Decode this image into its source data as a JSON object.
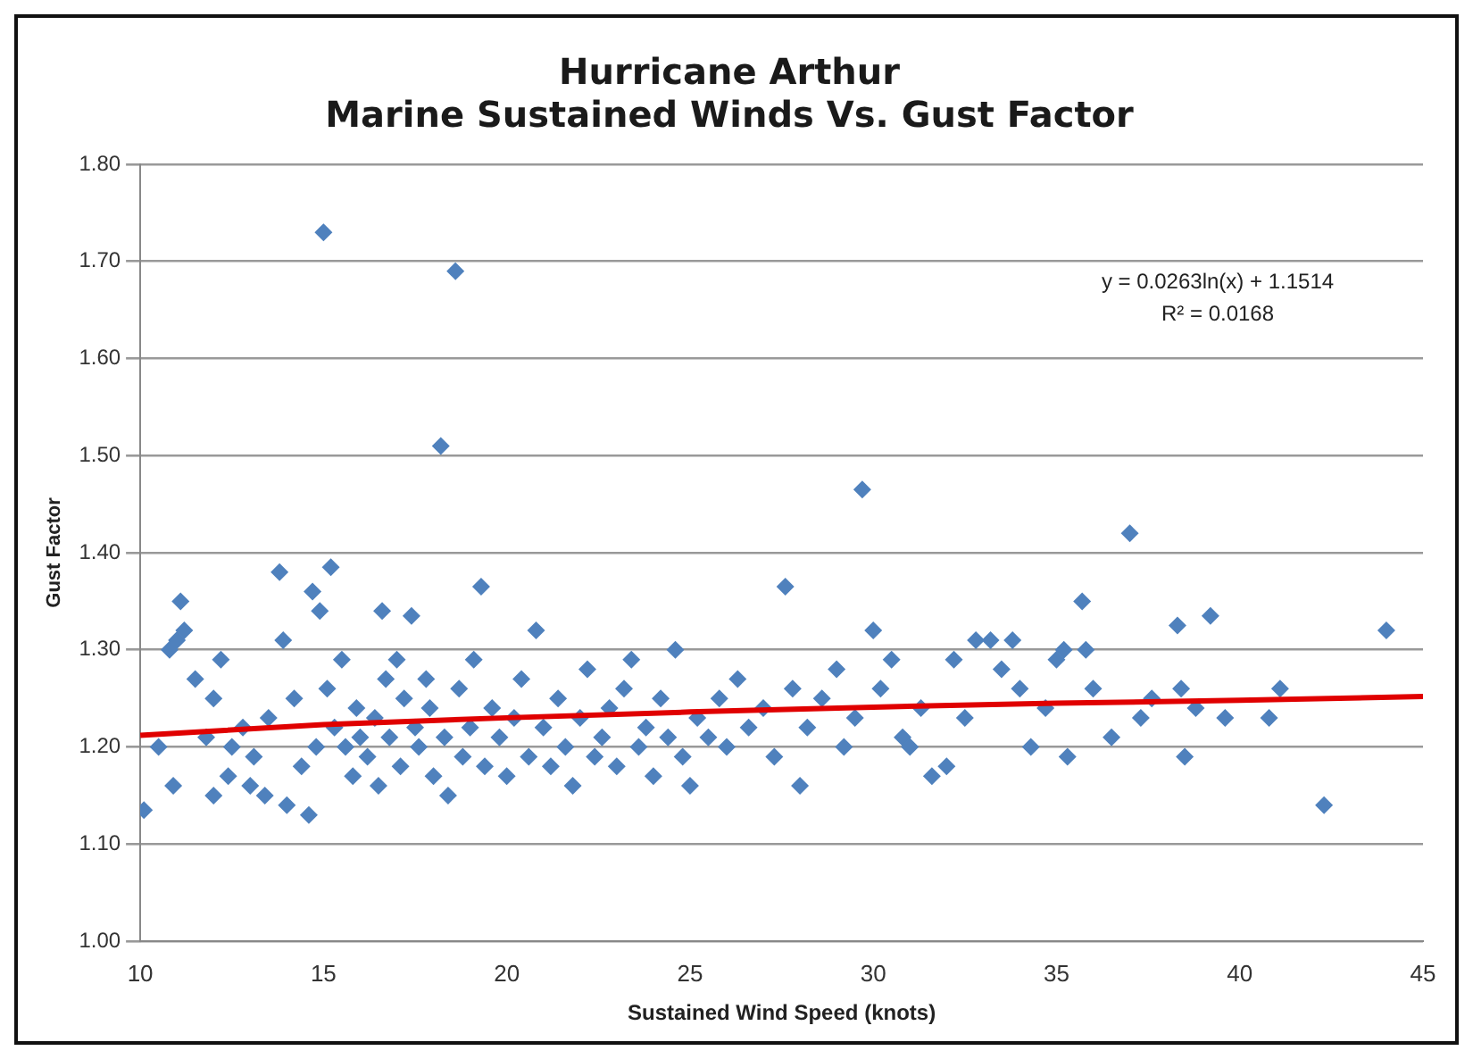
{
  "chart_data": {
    "type": "scatter",
    "title": "Hurricane Arthur\nMarine Sustained Winds Vs. Gust Factor",
    "xlabel": "Sustained Wind Speed (knots)",
    "ylabel": "Gust Factor",
    "annotations": [
      "y = 0.0263ln(x) + 1.1514",
      "R² = 0.0168"
    ],
    "xlim": [
      10,
      45
    ],
    "xticks": [
      10,
      15,
      20,
      25,
      30,
      35,
      40,
      45
    ],
    "ylim": [
      1.0,
      1.8
    ],
    "yticks": [
      {
        "value": 1.0,
        "label": "1.00"
      },
      {
        "value": 1.1,
        "label": "1.10"
      },
      {
        "value": 1.2,
        "label": "1.20"
      },
      {
        "value": 1.3,
        "label": "1.30"
      },
      {
        "value": 1.4,
        "label": "1.40"
      },
      {
        "value": 1.5,
        "label": "1.50"
      },
      {
        "value": 1.6,
        "label": "1.60"
      },
      {
        "value": 1.7,
        "label": "1.70"
      },
      {
        "value": 1.8,
        "label": "1.80"
      }
    ],
    "grid": "y",
    "legend": false,
    "marker": "diamond",
    "series": [
      {
        "color": "#4f81bd",
        "x": [
          10.1,
          10.5,
          10.8,
          10.9,
          11.0,
          11.1,
          11.2,
          11.5,
          11.8,
          12.0,
          12.0,
          12.2,
          12.4,
          12.5,
          12.8,
          13.0,
          13.1,
          13.4,
          13.5,
          13.8,
          13.9,
          14.0,
          14.2,
          14.4,
          14.6,
          14.7,
          14.8,
          14.9,
          15.0,
          15.1,
          15.2,
          15.3,
          15.5,
          15.6,
          15.8,
          15.9,
          16.0,
          16.2,
          16.4,
          16.5,
          16.6,
          16.7,
          16.8,
          17.0,
          17.1,
          17.2,
          17.4,
          17.5,
          17.6,
          17.8,
          17.9,
          18.0,
          18.2,
          18.3,
          18.4,
          18.6,
          18.7,
          18.8,
          19.0,
          19.1,
          19.3,
          19.4,
          19.6,
          19.8,
          20.0,
          20.2,
          20.4,
          20.6,
          20.8,
          21.0,
          21.2,
          21.4,
          21.6,
          21.8,
          22.0,
          22.2,
          22.4,
          22.6,
          22.8,
          23.0,
          23.2,
          23.4,
          23.6,
          23.8,
          24.0,
          24.2,
          24.4,
          24.6,
          24.8,
          25.0,
          25.2,
          25.5,
          25.8,
          26.0,
          26.3,
          26.6,
          27.0,
          27.3,
          27.6,
          27.8,
          28.0,
          28.2,
          28.6,
          29.0,
          29.2,
          29.5,
          29.7,
          30.0,
          30.2,
          30.5,
          30.8,
          31.0,
          31.3,
          31.6,
          32.0,
          32.2,
          32.5,
          32.8,
          33.2,
          33.5,
          33.8,
          34.0,
          34.3,
          34.7,
          35.0,
          35.2,
          35.3,
          35.7,
          35.8,
          36.0,
          36.5,
          37.0,
          37.3,
          37.6,
          38.3,
          38.4,
          38.5,
          38.8,
          39.2,
          39.6,
          40.8,
          41.1,
          42.3,
          44.0
        ],
        "values": [
          1.135,
          1.2,
          1.3,
          1.16,
          1.31,
          1.35,
          1.32,
          1.27,
          1.21,
          1.15,
          1.25,
          1.29,
          1.17,
          1.2,
          1.22,
          1.16,
          1.19,
          1.15,
          1.23,
          1.38,
          1.31,
          1.14,
          1.25,
          1.18,
          1.13,
          1.36,
          1.2,
          1.34,
          1.73,
          1.26,
          1.385,
          1.22,
          1.29,
          1.2,
          1.17,
          1.24,
          1.21,
          1.19,
          1.23,
          1.16,
          1.34,
          1.27,
          1.21,
          1.29,
          1.18,
          1.25,
          1.335,
          1.22,
          1.2,
          1.27,
          1.24,
          1.17,
          1.51,
          1.21,
          1.15,
          1.69,
          1.26,
          1.19,
          1.22,
          1.29,
          1.365,
          1.18,
          1.24,
          1.21,
          1.17,
          1.23,
          1.27,
          1.19,
          1.32,
          1.22,
          1.18,
          1.25,
          1.2,
          1.16,
          1.23,
          1.28,
          1.19,
          1.21,
          1.24,
          1.18,
          1.26,
          1.29,
          1.2,
          1.22,
          1.17,
          1.25,
          1.21,
          1.3,
          1.19,
          1.16,
          1.23,
          1.21,
          1.25,
          1.2,
          1.27,
          1.22,
          1.24,
          1.19,
          1.365,
          1.26,
          1.16,
          1.22,
          1.25,
          1.28,
          1.2,
          1.23,
          1.465,
          1.32,
          1.26,
          1.29,
          1.21,
          1.2,
          1.24,
          1.17,
          1.18,
          1.29,
          1.23,
          1.31,
          1.31,
          1.28,
          1.31,
          1.26,
          1.2,
          1.24,
          1.29,
          1.3,
          1.19,
          1.35,
          1.3,
          1.26,
          1.21,
          1.42,
          1.23,
          1.25,
          1.325,
          1.26,
          1.19,
          1.24,
          1.335,
          1.23,
          1.23,
          1.26,
          1.14,
          1.32
        ]
      },
      {
        "type": "line",
        "color": "#e00000",
        "marker": "none",
        "line_style": "solid",
        "x": [
          10,
          15,
          20,
          25,
          30,
          35,
          40,
          45
        ],
        "values": [
          1.212,
          1.223,
          1.23,
          1.236,
          1.241,
          1.245,
          1.248,
          1.252
        ]
      }
    ]
  }
}
